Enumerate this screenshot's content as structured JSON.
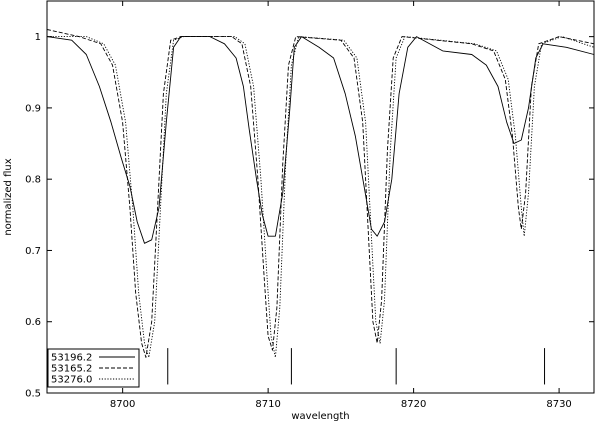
{
  "chart_data": {
    "type": "line",
    "title": "",
    "xlabel": "wavelength",
    "ylabel": "normalized flux",
    "xlim": [
      8694.8,
      8732.4
    ],
    "ylim": [
      0.5,
      1.05
    ],
    "grid": false,
    "legend_position": "bottom-left",
    "x_ticks": [
      8700,
      8710,
      8720,
      8730
    ],
    "y_ticks": [
      0.5,
      0.6,
      0.7,
      0.8,
      0.9,
      1.0
    ],
    "x_tick_labels": [
      "8700",
      "8710",
      "8720",
      "8730"
    ],
    "y_tick_labels": [
      "0.5",
      "0.6",
      "0.7",
      "0.8",
      "0.9",
      "1"
    ],
    "reference_marks": [
      8703.1,
      8711.6,
      8718.8,
      8729.0
    ],
    "series": [
      {
        "name": "53196.2",
        "style": "solid",
        "points": [
          [
            8694.8,
            1.0
          ],
          [
            8696.5,
            0.995
          ],
          [
            8697.5,
            0.975
          ],
          [
            8698.4,
            0.93
          ],
          [
            8699.2,
            0.88
          ],
          [
            8699.9,
            0.83
          ],
          [
            8700.5,
            0.79
          ],
          [
            8701.0,
            0.74
          ],
          [
            8701.5,
            0.71
          ],
          [
            8702.0,
            0.715
          ],
          [
            8702.5,
            0.76
          ],
          [
            8703.0,
            0.88
          ],
          [
            8703.5,
            0.985
          ],
          [
            8704.0,
            1.0
          ],
          [
            8706.0,
            1.0
          ],
          [
            8707.0,
            0.99
          ],
          [
            8707.8,
            0.97
          ],
          [
            8708.3,
            0.93
          ],
          [
            8708.7,
            0.87
          ],
          [
            8709.2,
            0.8
          ],
          [
            8709.6,
            0.75
          ],
          [
            8710.0,
            0.72
          ],
          [
            8710.5,
            0.72
          ],
          [
            8711.0,
            0.78
          ],
          [
            8711.5,
            0.9
          ],
          [
            8711.8,
            0.985
          ],
          [
            8712.3,
            1.0
          ],
          [
            8713.5,
            0.985
          ],
          [
            8714.5,
            0.97
          ],
          [
            8715.3,
            0.92
          ],
          [
            8716.0,
            0.86
          ],
          [
            8716.6,
            0.79
          ],
          [
            8717.1,
            0.73
          ],
          [
            8717.5,
            0.72
          ],
          [
            8718.0,
            0.74
          ],
          [
            8718.5,
            0.8
          ],
          [
            8719.0,
            0.92
          ],
          [
            8719.6,
            0.985
          ],
          [
            8720.2,
            1.0
          ],
          [
            8722.0,
            0.98
          ],
          [
            8724.0,
            0.975
          ],
          [
            8725.0,
            0.96
          ],
          [
            8725.8,
            0.93
          ],
          [
            8726.4,
            0.88
          ],
          [
            8726.9,
            0.85
          ],
          [
            8727.4,
            0.855
          ],
          [
            8727.9,
            0.9
          ],
          [
            8728.4,
            0.97
          ],
          [
            8728.9,
            0.99
          ],
          [
            8730.5,
            0.985
          ],
          [
            8732.4,
            0.975
          ]
        ]
      },
      {
        "name": "53165.2",
        "style": "dashed",
        "points": [
          [
            8694.8,
            1.01
          ],
          [
            8697.0,
            1.0
          ],
          [
            8698.5,
            0.99
          ],
          [
            8699.3,
            0.96
          ],
          [
            8700.0,
            0.88
          ],
          [
            8700.5,
            0.76
          ],
          [
            8700.9,
            0.64
          ],
          [
            8701.3,
            0.57
          ],
          [
            8701.6,
            0.55
          ],
          [
            8702.0,
            0.6
          ],
          [
            8702.4,
            0.76
          ],
          [
            8702.8,
            0.92
          ],
          [
            8703.3,
            0.995
          ],
          [
            8704.0,
            1.0
          ],
          [
            8707.5,
            1.0
          ],
          [
            8708.2,
            0.99
          ],
          [
            8708.8,
            0.93
          ],
          [
            8709.3,
            0.8
          ],
          [
            8709.7,
            0.67
          ],
          [
            8710.0,
            0.58
          ],
          [
            8710.3,
            0.56
          ],
          [
            8710.6,
            0.62
          ],
          [
            8711.0,
            0.82
          ],
          [
            8711.4,
            0.96
          ],
          [
            8711.9,
            1.0
          ],
          [
            8715.0,
            0.995
          ],
          [
            8715.9,
            0.97
          ],
          [
            8716.5,
            0.88
          ],
          [
            8716.9,
            0.72
          ],
          [
            8717.2,
            0.6
          ],
          [
            8717.5,
            0.57
          ],
          [
            8717.8,
            0.63
          ],
          [
            8718.2,
            0.84
          ],
          [
            8718.6,
            0.97
          ],
          [
            8719.2,
            1.0
          ],
          [
            8724.0,
            0.99
          ],
          [
            8725.5,
            0.98
          ],
          [
            8726.3,
            0.94
          ],
          [
            8726.8,
            0.86
          ],
          [
            8727.2,
            0.76
          ],
          [
            8727.4,
            0.73
          ],
          [
            8727.7,
            0.78
          ],
          [
            8728.1,
            0.93
          ],
          [
            8728.6,
            0.99
          ],
          [
            8730.0,
            1.0
          ],
          [
            8732.4,
            0.99
          ]
        ]
      },
      {
        "name": "53276.0",
        "style": "dotted",
        "points": [
          [
            8694.8,
            1.0
          ],
          [
            8697.5,
            1.0
          ],
          [
            8698.7,
            0.99
          ],
          [
            8699.5,
            0.96
          ],
          [
            8700.2,
            0.88
          ],
          [
            8700.7,
            0.76
          ],
          [
            8701.1,
            0.64
          ],
          [
            8701.5,
            0.57
          ],
          [
            8701.8,
            0.55
          ],
          [
            8702.2,
            0.6
          ],
          [
            8702.6,
            0.76
          ],
          [
            8703.0,
            0.92
          ],
          [
            8703.5,
            0.995
          ],
          [
            8704.2,
            1.0
          ],
          [
            8707.7,
            1.0
          ],
          [
            8708.4,
            0.99
          ],
          [
            8709.0,
            0.93
          ],
          [
            8709.5,
            0.8
          ],
          [
            8709.9,
            0.67
          ],
          [
            8710.2,
            0.58
          ],
          [
            8710.5,
            0.55
          ],
          [
            8710.8,
            0.62
          ],
          [
            8711.2,
            0.82
          ],
          [
            8711.6,
            0.96
          ],
          [
            8712.1,
            1.0
          ],
          [
            8715.2,
            0.995
          ],
          [
            8716.1,
            0.97
          ],
          [
            8716.7,
            0.88
          ],
          [
            8717.1,
            0.72
          ],
          [
            8717.4,
            0.6
          ],
          [
            8717.7,
            0.57
          ],
          [
            8718.0,
            0.63
          ],
          [
            8718.4,
            0.84
          ],
          [
            8718.8,
            0.97
          ],
          [
            8719.4,
            1.0
          ],
          [
            8724.2,
            0.99
          ],
          [
            8725.7,
            0.98
          ],
          [
            8726.5,
            0.94
          ],
          [
            8727.0,
            0.86
          ],
          [
            8727.4,
            0.76
          ],
          [
            8727.6,
            0.72
          ],
          [
            8727.9,
            0.78
          ],
          [
            8728.3,
            0.93
          ],
          [
            8728.8,
            0.99
          ],
          [
            8730.2,
            1.0
          ],
          [
            8732.4,
            0.985
          ]
        ]
      }
    ]
  }
}
